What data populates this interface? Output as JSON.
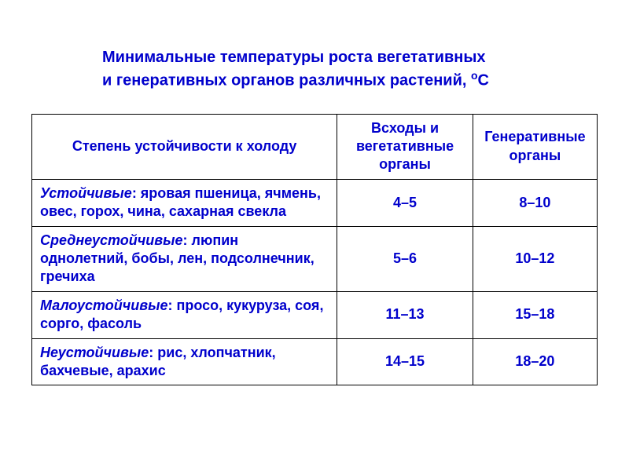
{
  "title_line1": "Минимальные температуры роста вегетативных",
  "title_line2": "и генеративных органов различных растений, ",
  "title_unit_sup": "o",
  "title_unit_c": "С",
  "table": {
    "headers": {
      "col1": "Степень устойчивости к холоду",
      "col2": "Всходы и вегетативные органы",
      "col3": "Генеративные органы"
    },
    "rows": [
      {
        "category": "Устойчивые",
        "items": ": яровая пшеница, ячмень, овес, горох, чина, сахарная свекла",
        "veg": "4–5",
        "gen": "8–10"
      },
      {
        "category": "Среднеустойчивые",
        "items": ": люпин однолетний, бобы, лен, подсолнечник, гречиха",
        "veg": "5–6",
        "gen": "10–12"
      },
      {
        "category": "Малоустойчивые",
        "items": ": просо, кукуруза, соя, сорго, фасоль",
        "veg": "11–13",
        "gen": "15–18"
      },
      {
        "category": "Неустойчивые",
        "items": ": рис, хлопчатник, бахчевые, арахис",
        "veg": "14–15",
        "gen": "18–20"
      }
    ]
  },
  "styling": {
    "text_color": "#0000cc",
    "border_color": "#000000",
    "background_color": "#ffffff",
    "title_fontsize": 20,
    "cell_fontsize": 18,
    "font_family": "Arial",
    "col_widths_pct": [
      54,
      24,
      22
    ]
  }
}
